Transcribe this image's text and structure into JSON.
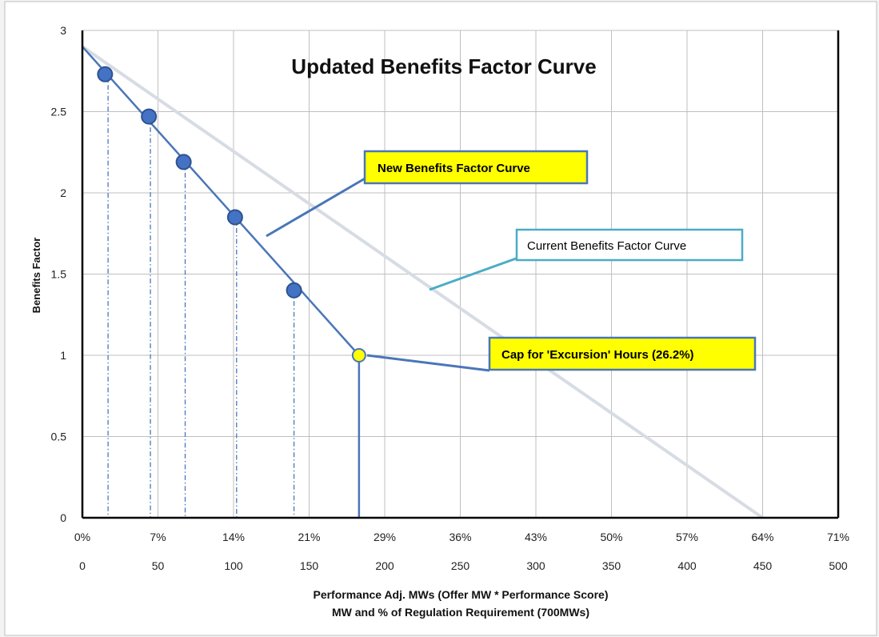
{
  "colors": {
    "new_curve": "#4a76b8",
    "point_fill": "#4472c4",
    "point_stroke": "#2f528f",
    "cap_point": "#ffff00",
    "current_curve": "#d7dce4",
    "callout_yellow": "#ffff00",
    "callout_blue_border": "#4a76b8",
    "callout_teal_border": "#4bacc6"
  },
  "chart_data": {
    "type": "line",
    "title": "Updated Benefits Factor Curve",
    "xlabel": "Performance Adj. MWs (Offer MW * Performance Score)",
    "xlabel2": "MW and % of Regulation Requirement (700MWs)",
    "ylabel": "Benefits Factor",
    "xlim": [
      0,
      500
    ],
    "ylim": [
      0,
      3
    ],
    "x_ticks": [
      "0",
      "50",
      "100",
      "150",
      "200",
      "250",
      "300",
      "350",
      "400",
      "450",
      "500"
    ],
    "x_pct_ticks": [
      "0%",
      "7%",
      "14%",
      "21%",
      "29%",
      "36%",
      "43%",
      "50%",
      "57%",
      "64%",
      "71%"
    ],
    "y_ticks": [
      "0",
      "0.5",
      "1",
      "1.5",
      "2",
      "2.5",
      "3"
    ],
    "grid": true,
    "series": [
      {
        "name": "New Benefits Factor Curve",
        "line": [
          [
            0,
            2.9
          ],
          [
            183,
            1.0
          ],
          [
            183,
            0
          ]
        ],
        "points": [
          [
            15,
            2.73
          ],
          [
            44,
            2.47
          ],
          [
            67,
            2.19
          ],
          [
            101,
            1.85
          ],
          [
            140,
            1.4
          ]
        ],
        "cap_point": [
          183,
          1.0
        ]
      },
      {
        "name": "Current Benefits Factor Curve",
        "line": [
          [
            0,
            2.9
          ],
          [
            450,
            0
          ]
        ]
      }
    ],
    "droplines_x": [
      17,
      45,
      68,
      102,
      140
    ],
    "annotations": {
      "new_curve": "New  Benefits Factor Curve",
      "current_curve": "Current Benefits Factor Curve",
      "cap": "Cap for 'Excursion' Hours (26.2%)"
    }
  }
}
